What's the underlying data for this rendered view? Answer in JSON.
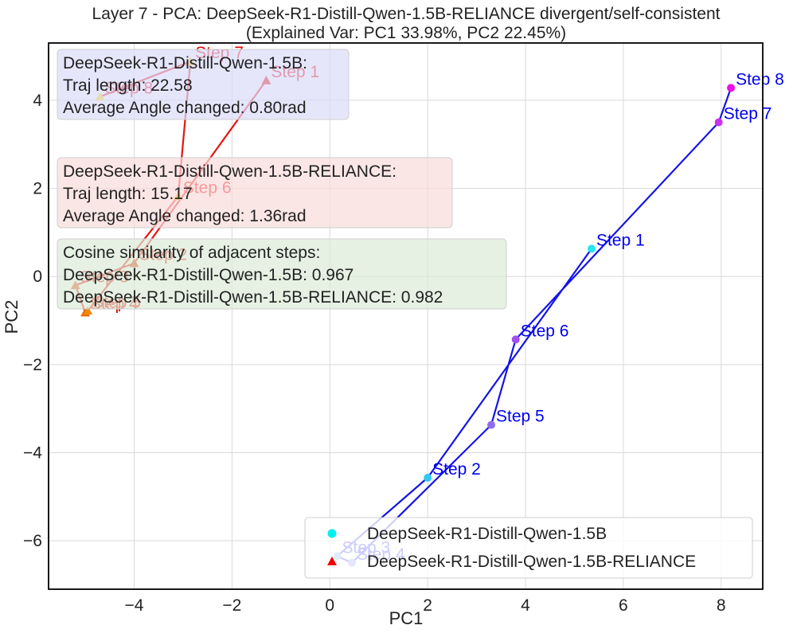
{
  "chart_data": {
    "type": "scatter",
    "title": "Layer 7 - PCA: DeepSeek-R1-Distill-Qwen-1.5B-RELIANCE divergent/self-consistent",
    "subtitle": "(Explained Var: PC1 33.98%, PC2 22.45%)",
    "xlabel": "PC1",
    "ylabel": "PC2",
    "xlim": [
      -5.75,
      8.85
    ],
    "ylim": [
      -7.1,
      5.3
    ],
    "xticks": [
      -4,
      -2,
      0,
      2,
      4,
      6,
      8
    ],
    "yticks": [
      -6,
      -4,
      -2,
      0,
      2,
      4
    ],
    "xtick_labels": [
      "−4",
      "−2",
      "0",
      "2",
      "4",
      "6",
      "8"
    ],
    "ytick_labels": [
      "−6",
      "−4",
      "−2",
      "0",
      "2",
      "4"
    ],
    "grid": true,
    "legend_position": "lower-right",
    "series": [
      {
        "name": "DeepSeek-R1-Distill-Qwen-1.5B",
        "marker": "circle",
        "line_color": "#1414e6",
        "label_color": "#0000ee",
        "points": [
          {
            "label": "Step 1",
            "x": 5.35,
            "y": 0.63,
            "color": "#22e6f0"
          },
          {
            "label": "Step 2",
            "x": 2.0,
            "y": -4.57,
            "color": "#33c8f2"
          },
          {
            "label": "Step 3",
            "x": 0.15,
            "y": -6.35,
            "color": "#5aa8f0"
          },
          {
            "label": "Step 4",
            "x": 0.45,
            "y": -6.5,
            "color": "#7a86ef"
          },
          {
            "label": "Step 5",
            "x": 3.3,
            "y": -3.37,
            "color": "#8c6ff0"
          },
          {
            "label": "Step 6",
            "x": 3.8,
            "y": -1.43,
            "color": "#a14ff0"
          },
          {
            "label": "Step 7",
            "x": 7.95,
            "y": 3.5,
            "color": "#c833ee"
          },
          {
            "label": "Step 8",
            "x": 8.2,
            "y": 4.28,
            "color": "#f00ee6"
          }
        ]
      },
      {
        "name": "DeepSeek-R1-Distill-Qwen-1.5B-RELIANCE",
        "marker": "triangle",
        "line_color": "#e61414",
        "label_color": "#e60000",
        "points": [
          {
            "label": "Step 1",
            "x": -1.3,
            "y": 4.45,
            "color": "#e60000"
          },
          {
            "label": "Step 2",
            "x": -4.0,
            "y": 0.3,
            "color": "#e82200"
          },
          {
            "label": "Step 3",
            "x": -5.2,
            "y": -0.2,
            "color": "#ec4400"
          },
          {
            "label": "Step 4",
            "x": -5.0,
            "y": -0.82,
            "color": "#f06600"
          },
          {
            "label": "Step 5",
            "x": -4.95,
            "y": -0.78,
            "color": "#f48800"
          },
          {
            "label": "Step 6",
            "x": -3.1,
            "y": 1.82,
            "color": "#f8a800"
          },
          {
            "label": "Step 7",
            "x": -2.85,
            "y": 4.88,
            "color": "#fac800"
          },
          {
            "label": "Step 8",
            "x": -4.7,
            "y": 4.08,
            "color": "#fce000"
          }
        ]
      }
    ],
    "legend": [
      {
        "label": "DeepSeek-R1-Distill-Qwen-1.5B",
        "marker": "circle",
        "color": "#00f0f0"
      },
      {
        "label": "DeepSeek-R1-Distill-Qwen-1.5B-RELIANCE",
        "marker": "triangle",
        "color": "#ee0000"
      }
    ],
    "annotations": [
      {
        "lines": [
          "DeepSeek-R1-Distill-Qwen-1.5B:",
          "Traj length: 22.58",
          "Average Angle changed: 0.80rad"
        ],
        "color": "#dcdcfa"
      },
      {
        "lines": [
          "DeepSeek-R1-Distill-Qwen-1.5B-RELIANCE:",
          "Traj length: 15.17",
          "Average Angle changed: 1.36rad"
        ],
        "color": "#fadcdc"
      },
      {
        "lines": [
          "Cosine similarity of adjacent steps:",
          "DeepSeek-R1-Distill-Qwen-1.5B: 0.967",
          "DeepSeek-R1-Distill-Qwen-1.5B-RELIANCE: 0.982"
        ],
        "color": "#dcebd7"
      }
    ]
  }
}
